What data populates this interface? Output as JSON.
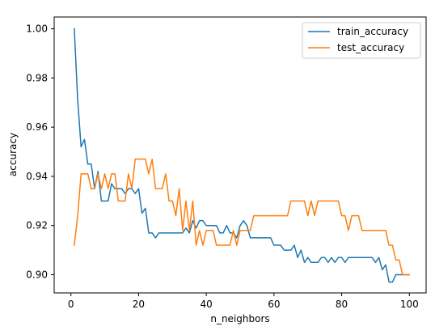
{
  "chart_data": {
    "type": "line",
    "title": "",
    "xlabel": "n_neighbors",
    "ylabel": "accuracy",
    "xlim": [
      -4.95,
      104.95
    ],
    "ylim": [
      0.8926,
      1.0048
    ],
    "xticks": [
      0,
      20,
      40,
      60,
      80,
      100
    ],
    "yticks": [
      0.9,
      0.92,
      0.94,
      0.96,
      0.98,
      1.0
    ],
    "xtick_labels": [
      "0",
      "20",
      "40",
      "60",
      "80",
      "100"
    ],
    "ytick_labels": [
      "0.90",
      "0.92",
      "0.94",
      "0.96",
      "0.98",
      "1.00"
    ],
    "grid": false,
    "legend_position": "upper right",
    "series": [
      {
        "name": "train_accuracy",
        "color": "#1f77b4",
        "x": [
          1,
          2,
          3,
          4,
          5,
          6,
          7,
          8,
          9,
          10,
          11,
          12,
          13,
          14,
          15,
          16,
          17,
          18,
          19,
          20,
          21,
          22,
          23,
          24,
          25,
          26,
          27,
          28,
          29,
          30,
          31,
          32,
          33,
          34,
          35,
          36,
          37,
          38,
          39,
          40,
          41,
          42,
          43,
          44,
          45,
          46,
          47,
          48,
          49,
          50,
          51,
          52,
          53,
          54,
          55,
          56,
          57,
          58,
          59,
          60,
          61,
          62,
          63,
          64,
          65,
          66,
          67,
          68,
          69,
          70,
          71,
          72,
          73,
          74,
          75,
          76,
          77,
          78,
          79,
          80,
          81,
          82,
          83,
          84,
          85,
          86,
          87,
          88,
          89,
          90,
          91,
          92,
          93,
          94,
          95,
          96,
          97,
          98,
          99,
          100
        ],
        "y": [
          1.0,
          0.971,
          0.952,
          0.955,
          0.945,
          0.945,
          0.935,
          0.942,
          0.93,
          0.93,
          0.93,
          0.937,
          0.935,
          0.935,
          0.935,
          0.933,
          0.935,
          0.935,
          0.933,
          0.935,
          0.925,
          0.927,
          0.917,
          0.917,
          0.915,
          0.917,
          0.917,
          0.917,
          0.917,
          0.917,
          0.917,
          0.917,
          0.917,
          0.919,
          0.917,
          0.922,
          0.919,
          0.922,
          0.922,
          0.92,
          0.92,
          0.92,
          0.92,
          0.917,
          0.917,
          0.92,
          0.917,
          0.917,
          0.915,
          0.92,
          0.922,
          0.92,
          0.915,
          0.915,
          0.915,
          0.915,
          0.915,
          0.915,
          0.915,
          0.912,
          0.912,
          0.912,
          0.91,
          0.91,
          0.91,
          0.912,
          0.907,
          0.91,
          0.905,
          0.907,
          0.905,
          0.905,
          0.905,
          0.907,
          0.907,
          0.905,
          0.907,
          0.905,
          0.907,
          0.907,
          0.905,
          0.907,
          0.907,
          0.907,
          0.907,
          0.907,
          0.907,
          0.907,
          0.907,
          0.905,
          0.907,
          0.902,
          0.904,
          0.897,
          0.897,
          0.9,
          0.9,
          0.9,
          0.9,
          0.9
        ]
      },
      {
        "name": "test_accuracy",
        "color": "#ff7f0e",
        "x": [
          1,
          2,
          3,
          4,
          5,
          6,
          7,
          8,
          9,
          10,
          11,
          12,
          13,
          14,
          15,
          16,
          17,
          18,
          19,
          20,
          21,
          22,
          23,
          24,
          25,
          26,
          27,
          28,
          29,
          30,
          31,
          32,
          33,
          34,
          35,
          36,
          37,
          38,
          39,
          40,
          41,
          42,
          43,
          44,
          45,
          46,
          47,
          48,
          49,
          50,
          51,
          52,
          53,
          54,
          55,
          56,
          57,
          58,
          59,
          60,
          61,
          62,
          63,
          64,
          65,
          66,
          67,
          68,
          69,
          70,
          71,
          72,
          73,
          74,
          75,
          76,
          77,
          78,
          79,
          80,
          81,
          82,
          83,
          84,
          85,
          86,
          87,
          88,
          89,
          90,
          91,
          92,
          93,
          94,
          95,
          96,
          97,
          98,
          99,
          100
        ],
        "y": [
          0.912,
          0.924,
          0.941,
          0.941,
          0.941,
          0.935,
          0.935,
          0.941,
          0.935,
          0.941,
          0.935,
          0.941,
          0.941,
          0.93,
          0.93,
          0.93,
          0.941,
          0.935,
          0.947,
          0.947,
          0.947,
          0.947,
          0.941,
          0.947,
          0.935,
          0.935,
          0.935,
          0.941,
          0.93,
          0.93,
          0.924,
          0.935,
          0.918,
          0.93,
          0.918,
          0.93,
          0.912,
          0.918,
          0.912,
          0.918,
          0.918,
          0.918,
          0.912,
          0.912,
          0.912,
          0.912,
          0.912,
          0.918,
          0.912,
          0.918,
          0.918,
          0.918,
          0.918,
          0.924,
          0.924,
          0.924,
          0.924,
          0.924,
          0.924,
          0.924,
          0.924,
          0.924,
          0.924,
          0.924,
          0.93,
          0.93,
          0.93,
          0.93,
          0.93,
          0.924,
          0.93,
          0.924,
          0.93,
          0.93,
          0.93,
          0.93,
          0.93,
          0.93,
          0.93,
          0.924,
          0.924,
          0.918,
          0.924,
          0.924,
          0.924,
          0.918,
          0.918,
          0.918,
          0.918,
          0.918,
          0.918,
          0.918,
          0.918,
          0.912,
          0.912,
          0.906,
          0.906,
          0.9,
          0.9,
          0.9
        ]
      }
    ]
  }
}
